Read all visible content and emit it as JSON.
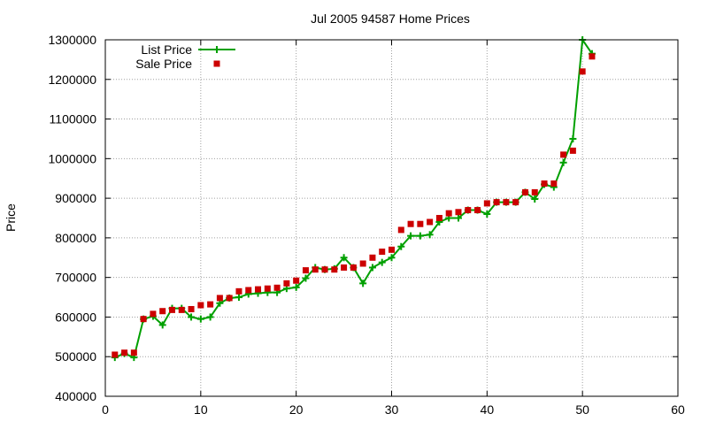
{
  "chart_data": {
    "type": "line",
    "title": "Jul 2005 94587 Home Prices",
    "xlabel": "",
    "ylabel": "Price",
    "xlim": [
      0,
      60
    ],
    "ylim": [
      400000,
      1300000
    ],
    "x_ticks": [
      "0",
      "10",
      "20",
      "30",
      "40",
      "50",
      "60"
    ],
    "y_ticks": [
      "400000",
      "500000",
      "600000",
      "700000",
      "800000",
      "900000",
      "1000000",
      "1100000",
      "1200000",
      "1300000"
    ],
    "grid": true,
    "legend_position": "top-left",
    "series": [
      {
        "name": "List Price",
        "style": "line-with-plus-markers",
        "color": "#00a000",
        "x": [
          1,
          2,
          3,
          4,
          5,
          6,
          7,
          8,
          9,
          10,
          11,
          12,
          13,
          14,
          15,
          16,
          17,
          18,
          19,
          20,
          21,
          22,
          23,
          24,
          25,
          26,
          27,
          28,
          29,
          30,
          31,
          32,
          33,
          34,
          35,
          36,
          37,
          38,
          39,
          40,
          41,
          42,
          43,
          44,
          45,
          46,
          47,
          48,
          49,
          50,
          51
        ],
        "y": [
          498000,
          508000,
          498000,
          595000,
          602000,
          580000,
          622000,
          622000,
          600000,
          595000,
          600000,
          635000,
          648000,
          650000,
          658000,
          660000,
          662000,
          662000,
          672000,
          675000,
          698000,
          725000,
          720000,
          722000,
          750000,
          725000,
          685000,
          725000,
          738000,
          750000,
          778000,
          805000,
          805000,
          808000,
          840000,
          850000,
          850000,
          870000,
          870000,
          860000,
          890000,
          890000,
          890000,
          915000,
          898000,
          935000,
          928000,
          990000,
          1050000,
          1300000,
          1265000
        ]
      },
      {
        "name": "Sale Price",
        "style": "square-markers",
        "color": "#cc0000",
        "x": [
          1,
          2,
          3,
          4,
          5,
          6,
          7,
          8,
          9,
          10,
          11,
          12,
          13,
          14,
          15,
          16,
          17,
          18,
          19,
          20,
          21,
          22,
          23,
          24,
          25,
          26,
          27,
          28,
          29,
          30,
          31,
          32,
          33,
          34,
          35,
          36,
          37,
          38,
          39,
          40,
          41,
          42,
          43,
          44,
          45,
          46,
          47,
          48,
          49,
          50,
          51
        ],
        "y": [
          505000,
          510000,
          510000,
          595000,
          608000,
          615000,
          618000,
          618000,
          620000,
          630000,
          632000,
          648000,
          648000,
          665000,
          668000,
          670000,
          672000,
          674000,
          685000,
          692000,
          718000,
          720000,
          720000,
          720000,
          725000,
          725000,
          735000,
          750000,
          765000,
          770000,
          820000,
          835000,
          835000,
          840000,
          850000,
          862000,
          865000,
          870000,
          870000,
          887000,
          890000,
          890000,
          890000,
          915000,
          915000,
          937000,
          937000,
          1010000,
          1020000,
          1220000,
          1258000
        ]
      }
    ]
  }
}
